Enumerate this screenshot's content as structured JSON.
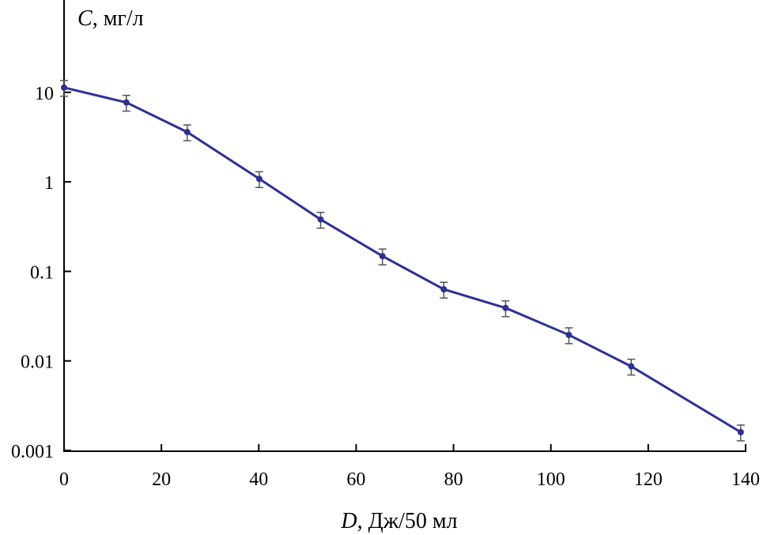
{
  "chart_data": {
    "type": "line",
    "title": "",
    "xlabel_italic": "D",
    "xlabel_rest": ", Дж/50 мл",
    "ylabel_italic": "C",
    "ylabel_rest": ", мг/л",
    "xlim": [
      0,
      140
    ],
    "ylim": [
      0.001,
      30
    ],
    "yscale": "log",
    "grid": false,
    "x_ticks": [
      0,
      20,
      40,
      60,
      80,
      100,
      120,
      140
    ],
    "x_tick_labels": [
      "0",
      "20",
      "40",
      "60",
      "80",
      "100",
      "120",
      "140"
    ],
    "y_ticks": [
      10,
      1,
      0.1,
      0.01,
      0.001
    ],
    "y_tick_labels": [
      "10",
      "1",
      "0.1",
      "0.01",
      "0.001"
    ],
    "line_color": "#2e3192",
    "errorbar_color": "#555555",
    "series": [
      {
        "x": [
          0,
          12.8,
          25.3,
          40.1,
          52.7,
          65.4,
          78,
          90.7,
          103.7,
          116.5,
          139
        ],
        "y": [
          11.3,
          7.7,
          3.6,
          1.08,
          0.38,
          0.148,
          0.063,
          0.039,
          0.0195,
          0.0087,
          0.0016
        ],
        "yerr_relative": 0.2
      }
    ]
  }
}
